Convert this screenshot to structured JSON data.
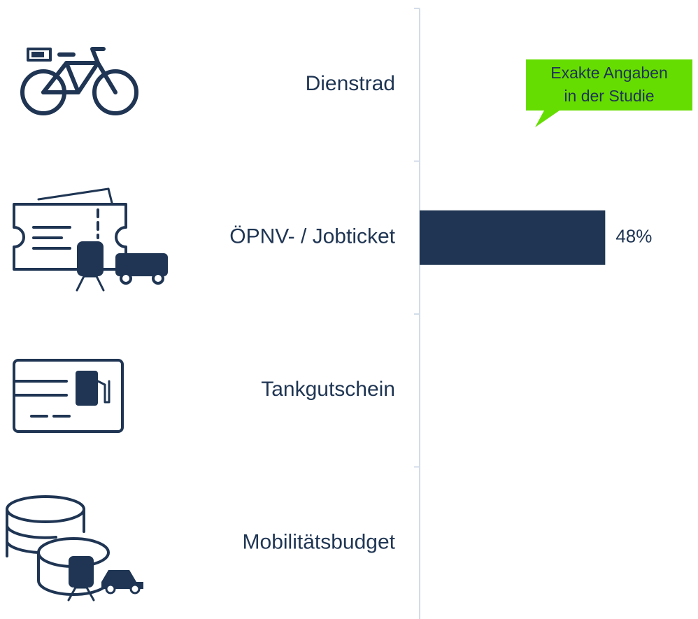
{
  "chart_data": {
    "type": "hbar",
    "categories": [
      "Dienstrad",
      "ÖPNV- / Jobticket",
      "Tankgutschein",
      "Mobilitätsbudget"
    ],
    "values": [
      null,
      48,
      null,
      null
    ],
    "value_labels": [
      null,
      "48%",
      null,
      null
    ],
    "color": "#1f3553",
    "xlim": [
      0,
      72
    ],
    "annotation": [
      "Exakte Angaben",
      "in der Studie"
    ],
    "annotation_color": "#66dd00"
  }
}
